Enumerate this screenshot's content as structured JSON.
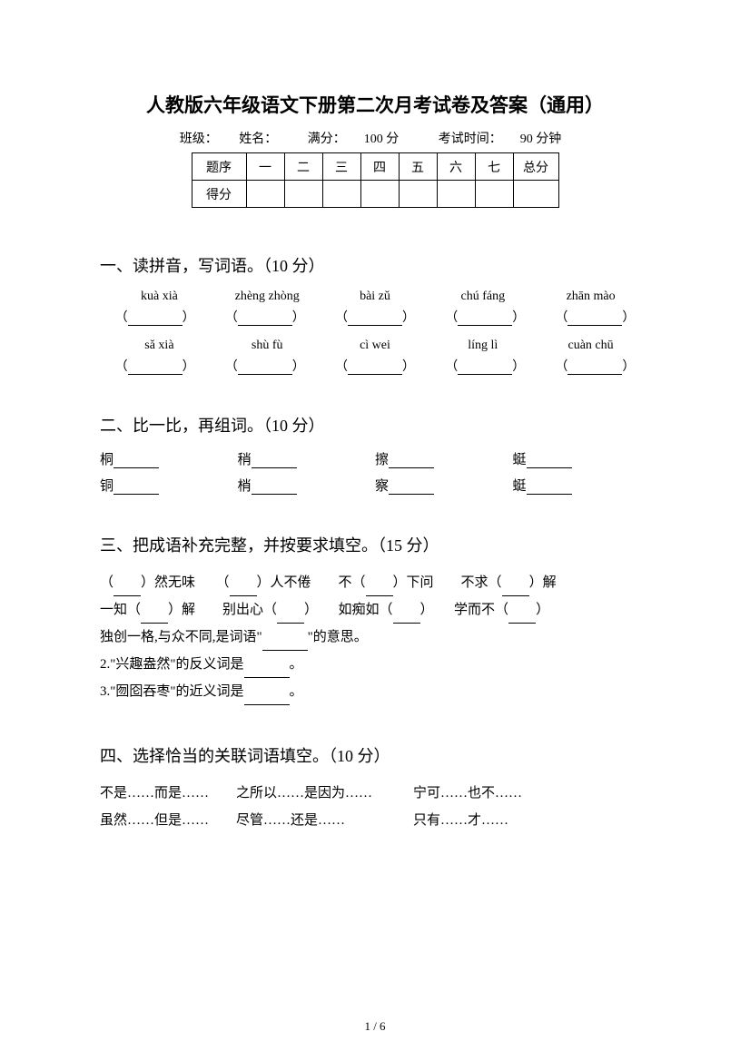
{
  "title": "人教版六年级语文下册第二次月考试卷及答案（通用）",
  "meta": {
    "class_label": "班级：",
    "name_label": "姓名：",
    "full_score_label": "满分：",
    "full_score_value": "100 分",
    "time_label": "考试时间：",
    "time_value": "90 分钟"
  },
  "score_table": {
    "row1_label": "题序",
    "cols": [
      "一",
      "二",
      "三",
      "四",
      "五",
      "六",
      "七"
    ],
    "total_label": "总分",
    "row2_label": "得分"
  },
  "section1": {
    "heading": "一、读拼音，写词语。（10 分）",
    "row1_pinyin": [
      "kuà xià",
      "zhèng zhòng",
      "bài zǔ",
      "chú fáng",
      "zhān mào"
    ],
    "row2_pinyin": [
      "sǎ xià",
      "shù fù",
      "cì wei",
      "líng lì",
      "cuàn chū"
    ]
  },
  "section2": {
    "heading": "二、比一比，再组词。（10 分）",
    "row1": [
      "桐",
      "稍",
      "擦",
      "蜓"
    ],
    "row2": [
      "铜",
      "梢",
      "察",
      "蜓"
    ]
  },
  "section3": {
    "heading": "三、把成语补充完整，并按要求填空。（15 分）",
    "line1_parts": [
      "（",
      "）然无味　　（",
      "）人不倦　　不（",
      "）下问　　不求（",
      "）解"
    ],
    "line2_parts": [
      "一知（",
      "）解　　别出心（",
      "）　　如痴如（",
      "）　　学而不（",
      "）"
    ],
    "line3_pre": "独创一格,与众不同,是词语\"",
    "line3_post": "\"的意思。",
    "line4_pre": "2.\"兴趣盎然\"的反义词是",
    "line4_post": "。",
    "line5_pre": "3.\"囫囵吞枣\"的近义词是",
    "line5_post": "。"
  },
  "section4": {
    "heading": "四、选择恰当的关联词语填空。（10 分）",
    "line1": "不是……而是……　　之所以……是因为……　　　宁可……也不……",
    "line2": "虽然……但是……　　尽管……还是……　　　　　只有……才……"
  },
  "page_number": "1 / 6"
}
